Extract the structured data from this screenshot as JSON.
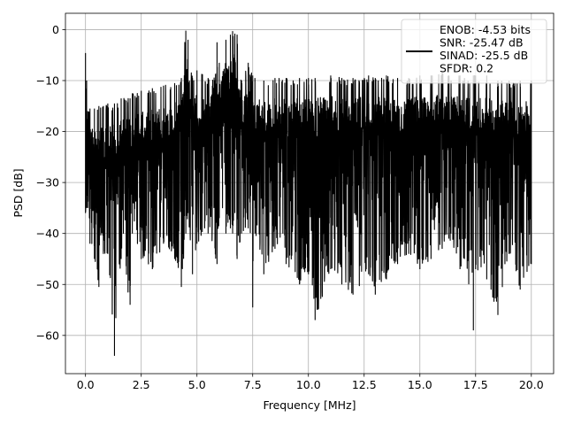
{
  "chart_data": {
    "type": "line",
    "xlabel": "Frequency [MHz]",
    "ylabel": "PSD [dB]",
    "xlim": [
      -0.9,
      21.0
    ],
    "ylim": [
      -67.5,
      3.2
    ],
    "x_ticks": [
      0.0,
      2.5,
      5.0,
      7.5,
      10.0,
      12.5,
      15.0,
      17.5,
      20.0
    ],
    "x_tick_labels": [
      "0.0",
      "2.5",
      "5.0",
      "7.5",
      "10.0",
      "12.5",
      "15.0",
      "17.5",
      "20.0"
    ],
    "y_ticks": [
      0,
      -10,
      -20,
      -30,
      -40,
      -50,
      -60
    ],
    "y_tick_labels": [
      "0",
      "−10",
      "−20",
      "−30",
      "−40",
      "−50",
      "−60"
    ],
    "grid": true,
    "legend_placement": "top-right",
    "series": [
      {
        "name": "ENOB: -4.53 bits\nSNR: -25.47 dB\nSINAD: -25.5 dB\nSFDR: 0.2",
        "color": "#000000",
        "x": [
          0.0,
          0.05,
          0.1,
          0.2,
          0.4,
          0.6,
          0.8,
          1.0,
          1.3,
          1.6,
          2.0,
          2.1,
          2.5,
          3.0,
          3.5,
          4.0,
          4.3,
          4.5,
          4.6,
          4.8,
          5.0,
          5.5,
          5.9,
          6.0,
          6.3,
          6.5,
          6.6,
          6.7,
          6.8,
          7.0,
          7.3,
          7.5,
          7.6,
          8.0,
          8.5,
          9.0,
          9.6,
          10.0,
          10.3,
          11.0,
          11.5,
          12.0,
          12.7,
          13.0,
          13.5,
          14.0,
          14.5,
          15.0,
          15.5,
          16.0,
          16.3,
          16.8,
          17.0,
          17.4,
          17.5,
          18.0,
          18.5,
          19.0,
          19.5,
          20.0
        ],
        "upper": [
          -4.6,
          -10.0,
          -16.0,
          -15.5,
          -15.5,
          -15.0,
          -15.0,
          -14.5,
          -14.5,
          -13.5,
          -13.5,
          -12.5,
          -12.0,
          -11.5,
          -11.0,
          -10.5,
          -9.5,
          -0.2,
          -2.0,
          -9.5,
          -8.0,
          -9.5,
          -2.5,
          -6.5,
          -2.0,
          -1.0,
          -0.3,
          -0.8,
          -1.0,
          -10.0,
          -6.5,
          -9.0,
          -9.5,
          -10.0,
          -9.5,
          -9.5,
          -9.5,
          -9.5,
          -9.5,
          -9.0,
          -9.5,
          -9.5,
          -9.0,
          -9.5,
          -9.0,
          -9.5,
          -9.5,
          -9.0,
          -9.0,
          -8.5,
          -9.0,
          -9.0,
          -9.5,
          -9.0,
          -9.0,
          -9.0,
          -10.0,
          -10.0,
          -10.0,
          -10.0
        ],
        "lower": [
          -36.0,
          -35.0,
          -35.0,
          -42.0,
          -45.0,
          -50.5,
          -44.0,
          -44.0,
          -64.0,
          -45.0,
          -54.0,
          -40.0,
          -45.0,
          -47.0,
          -42.0,
          -45.0,
          -50.5,
          -40.0,
          -36.0,
          -48.0,
          -42.0,
          -40.0,
          -46.0,
          -37.0,
          -40.0,
          -39.0,
          -40.0,
          -36.0,
          -45.0,
          -40.0,
          -39.0,
          -54.5,
          -40.0,
          -48.0,
          -43.0,
          -46.0,
          -50.0,
          -48.0,
          -57.0,
          -47.0,
          -50.0,
          -52.0,
          -48.0,
          -52.0,
          -49.0,
          -46.0,
          -44.0,
          -47.0,
          -45.0,
          -43.0,
          -41.0,
          -47.0,
          -45.0,
          -59.0,
          -47.0,
          -49.0,
          -56.0,
          -44.0,
          -51.0,
          -46.0
        ]
      }
    ]
  }
}
